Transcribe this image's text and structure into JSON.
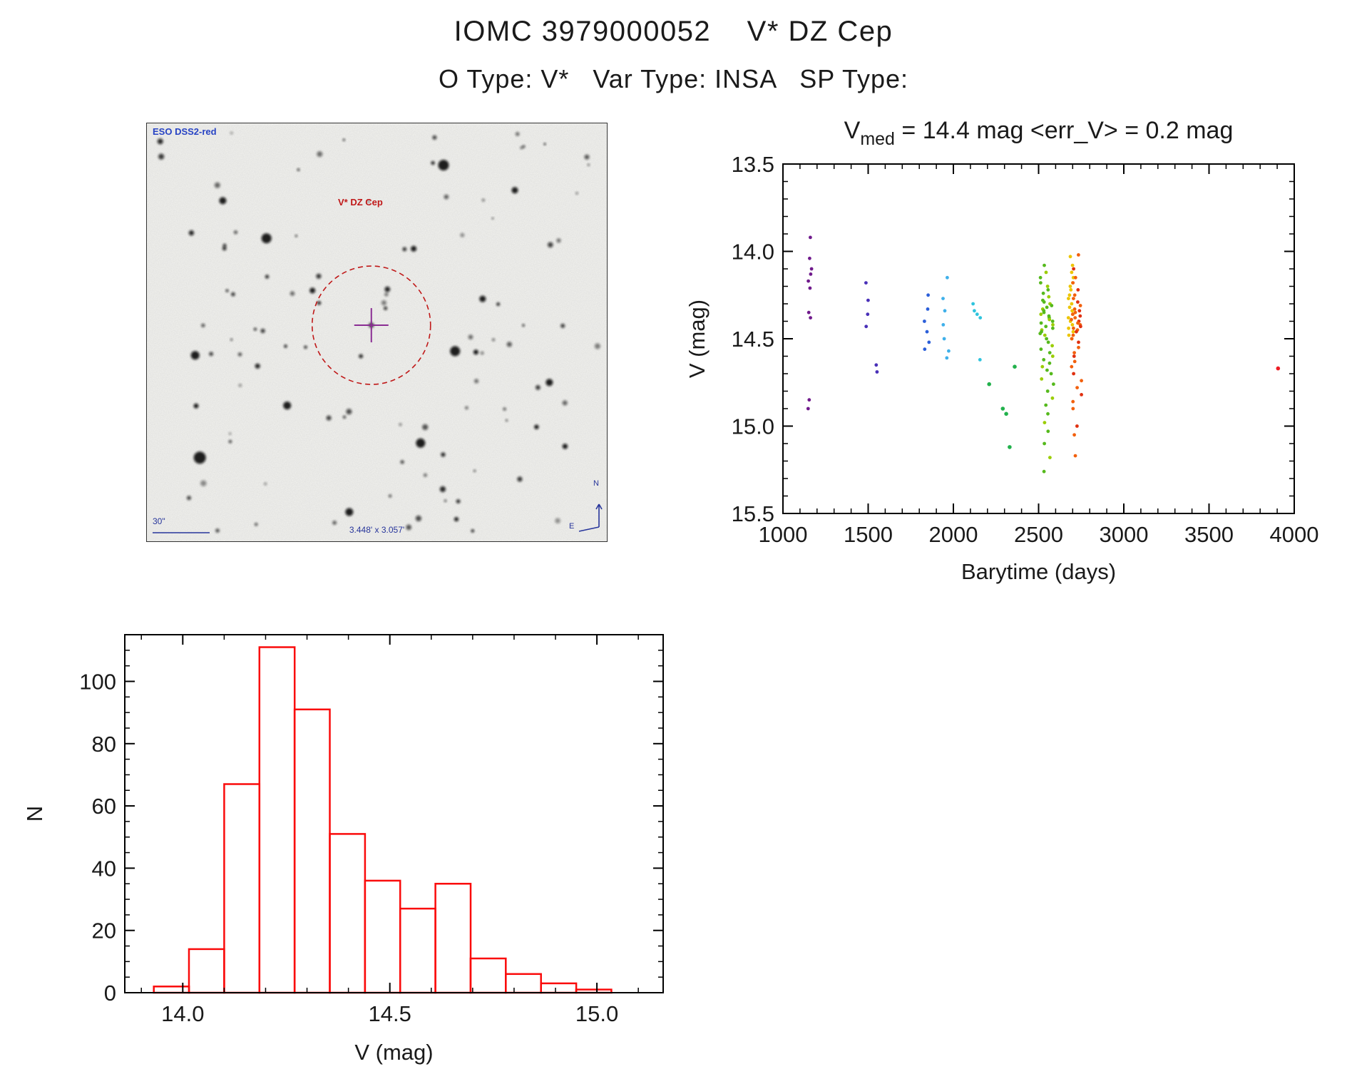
{
  "header": {
    "title": "IOMC 3979000052    V* DZ Cep",
    "subtitle": "O Type: V*   Var Type: INSA   SP Type:"
  },
  "finding_chart": {
    "survey_label": "ESO DSS2-red",
    "target_label": "V* DZ Cep",
    "scale_label": "30\"",
    "fov_label": "3.448' x 3.057'",
    "compass_north": "N",
    "compass_east": "E",
    "circle_color": "#c01818",
    "crosshair_color": "#8a2d93",
    "annotation_color": "#27359b"
  },
  "chart_data": [
    {
      "type": "scatter",
      "title": {
        "pre": "V",
        "sub": "med",
        "post": " = 14.4 mag <err_V> = 0.2 mag"
      },
      "xlabel": "Barytime (days)",
      "ylabel": "V (mag)",
      "xlim": [
        1000,
        4000
      ],
      "ylim": [
        13.5,
        15.5
      ],
      "xticks": [
        1000,
        1500,
        2000,
        2500,
        3000,
        3500,
        4000
      ],
      "yticks": [
        13.5,
        14.0,
        14.5,
        15.0,
        15.5
      ],
      "x_minor_step": 100,
      "y_minor_step": 0.1,
      "axis_color": "#000000",
      "clusters": [
        {
          "x": 1158,
          "spread": 14,
          "color": "#701a8c",
          "v": [
            13.92,
            14.04,
            14.1,
            14.13,
            14.17,
            14.21,
            14.35,
            14.38
          ]
        },
        {
          "x": 1148,
          "spread": 8,
          "color": "#701a8c",
          "v": [
            14.85,
            14.9
          ]
        },
        {
          "x": 1492,
          "spread": 10,
          "color": "#4930b8",
          "v": [
            14.18,
            14.28,
            14.36,
            14.43
          ]
        },
        {
          "x": 1552,
          "spread": 8,
          "color": "#4930b8",
          "v": [
            14.65,
            14.69
          ]
        },
        {
          "x": 1846,
          "spread": 16,
          "color": "#2b5fd9",
          "v": [
            14.25,
            14.33,
            14.4,
            14.46,
            14.52,
            14.56
          ]
        },
        {
          "x": 1960,
          "spread": 22,
          "color": "#3fb0ea",
          "v": [
            14.15,
            14.27,
            14.34,
            14.42,
            14.5,
            14.57,
            14.61
          ]
        },
        {
          "x": 2140,
          "spread": 26,
          "color": "#2fc4dd",
          "v": [
            14.3,
            14.34,
            14.38,
            14.36,
            14.62
          ]
        },
        {
          "x": 2548,
          "spread": 40,
          "color": "#55b91c",
          "color2": "#9acd00",
          "v": [
            14.08,
            14.12,
            14.15,
            14.18,
            14.2,
            14.22,
            14.24,
            14.26,
            14.28,
            14.29,
            14.3,
            14.31,
            14.32,
            14.33,
            14.34,
            14.35,
            14.36,
            14.37,
            14.38,
            14.39,
            14.4,
            14.41,
            14.42,
            14.43,
            14.44,
            14.45,
            14.46,
            14.47,
            14.48,
            14.5,
            14.52,
            14.54,
            14.56,
            14.58,
            14.6,
            14.62,
            14.64,
            14.66,
            14.68,
            14.7,
            14.73,
            14.76,
            14.8,
            14.84,
            14.88,
            14.93,
            14.98,
            15.03,
            15.1,
            15.18,
            15.26
          ]
        },
        {
          "x": 2688,
          "spread": 16,
          "color": "#edc500",
          "v": [
            14.03,
            14.08,
            14.12,
            14.15,
            14.18,
            14.2,
            14.22,
            14.25,
            14.27,
            14.3,
            14.32,
            14.34,
            14.36,
            14.38,
            14.4,
            14.42,
            14.44,
            14.46,
            14.48,
            14.5
          ]
        },
        {
          "x": 2722,
          "spread": 30,
          "color": "#f2600d",
          "color2": "#e03010",
          "v": [
            14.02,
            14.1,
            14.15,
            14.18,
            14.22,
            14.25,
            14.27,
            14.29,
            14.31,
            14.33,
            14.34,
            14.35,
            14.36,
            14.37,
            14.38,
            14.39,
            14.4,
            14.41,
            14.42,
            14.43,
            14.44,
            14.45,
            14.46,
            14.48,
            14.5,
            14.52,
            14.55,
            14.58,
            14.6,
            14.63,
            14.66,
            14.7,
            14.74,
            14.78,
            14.82,
            14.86,
            14.9,
            15.0,
            15.05,
            15.17
          ]
        }
      ],
      "points": [
        [
          2210,
          14.76,
          "#22b14c"
        ],
        [
          2290,
          14.9,
          "#22b14c"
        ],
        [
          2310,
          14.93,
          "#22b14c"
        ],
        [
          2330,
          15.12,
          "#22b14c"
        ],
        [
          2360,
          14.66,
          "#22b14c"
        ],
        [
          3905,
          14.67,
          "#ed1c24"
        ]
      ]
    },
    {
      "type": "histogram",
      "xlabel": "V (mag)",
      "ylabel": "N",
      "xlim": [
        13.86,
        15.16
      ],
      "ylim": [
        0,
        115
      ],
      "xticks": [
        14.0,
        14.5,
        15.0
      ],
      "yticks": [
        0,
        20,
        40,
        60,
        80,
        100
      ],
      "x_minor_step": 0.1,
      "y_minor_step": 5,
      "bin_start": 13.93,
      "bin_width": 0.085,
      "counts": [
        2,
        14,
        67,
        111,
        91,
        51,
        36,
        27,
        35,
        11,
        6,
        3,
        1
      ],
      "bar_color": "#fa0b0b",
      "axis_color": "#000000"
    }
  ]
}
